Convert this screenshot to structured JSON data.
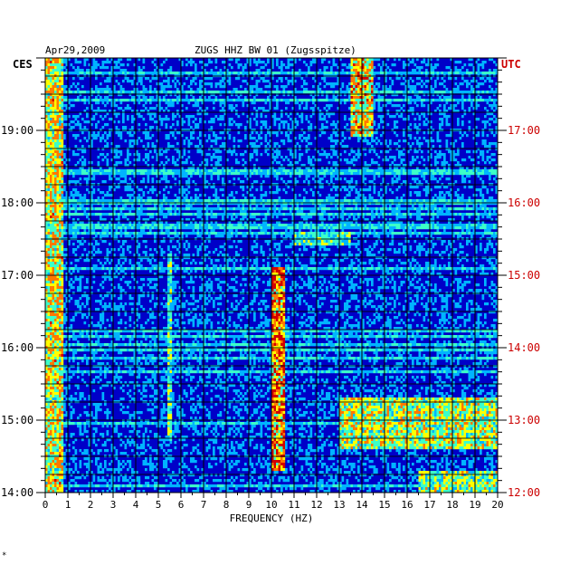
{
  "header": {
    "date": "Apr29,2009",
    "station": "ZUGS HHZ BW 01 (Zugsspitze)",
    "left_tz": "CES",
    "right_tz": "UTC"
  },
  "footer": {
    "mark": "*"
  },
  "colors": {
    "background": "#0000c8",
    "grid": "#000000",
    "utc_text": "#cc0000",
    "text": "#000000"
  },
  "chart_data": {
    "type": "heatmap",
    "title": "ZUGS HHZ BW 01 (Zugsspitze)",
    "xlabel": "FREQUENCY (HZ)",
    "xlim": [
      0,
      20
    ],
    "x_ticks": [
      "0",
      "1",
      "2",
      "3",
      "4",
      "5",
      "6",
      "7",
      "8",
      "9",
      "10",
      "11",
      "12",
      "13",
      "14",
      "15",
      "16",
      "17",
      "18",
      "19",
      "20"
    ],
    "y_ticks_left": [
      "19:00",
      "18:00",
      "17:00",
      "16:00",
      "15:00",
      "14:00"
    ],
    "y_ticks_right": [
      "17:00",
      "16:00",
      "15:00",
      "14:00",
      "13:00",
      "12:00"
    ],
    "time_range_local_hours": [
      14.0,
      20.0
    ],
    "color_scale": [
      "#00008c",
      "#0018ff",
      "#00b4ff",
      "#3cffc8",
      "#ffff00",
      "#ff7800",
      "#d20000"
    ],
    "features": [
      {
        "freq_hz": [
          0,
          0.8
        ],
        "time_hours": [
          14.0,
          20.0
        ],
        "intensity": 0.75
      },
      {
        "freq_hz": [
          5.4,
          5.6
        ],
        "time_hours": [
          14.7,
          17.3
        ],
        "intensity": 0.6
      },
      {
        "freq_hz": [
          10.0,
          10.6
        ],
        "time_hours": [
          14.3,
          17.1
        ],
        "intensity": 0.9
      },
      {
        "freq_hz": [
          13.5,
          14.5
        ],
        "time_hours": [
          18.9,
          20.0
        ],
        "intensity": 0.8
      },
      {
        "freq_hz": [
          13.0,
          20.0
        ],
        "time_hours": [
          14.6,
          15.3
        ],
        "intensity": 0.7
      },
      {
        "freq_hz": [
          16.5,
          20.0
        ],
        "time_hours": [
          14.0,
          14.3
        ],
        "intensity": 0.65
      },
      {
        "freq_hz": [
          11.0,
          13.5
        ],
        "time_hours": [
          17.4,
          17.6
        ],
        "intensity": 0.55
      }
    ]
  }
}
